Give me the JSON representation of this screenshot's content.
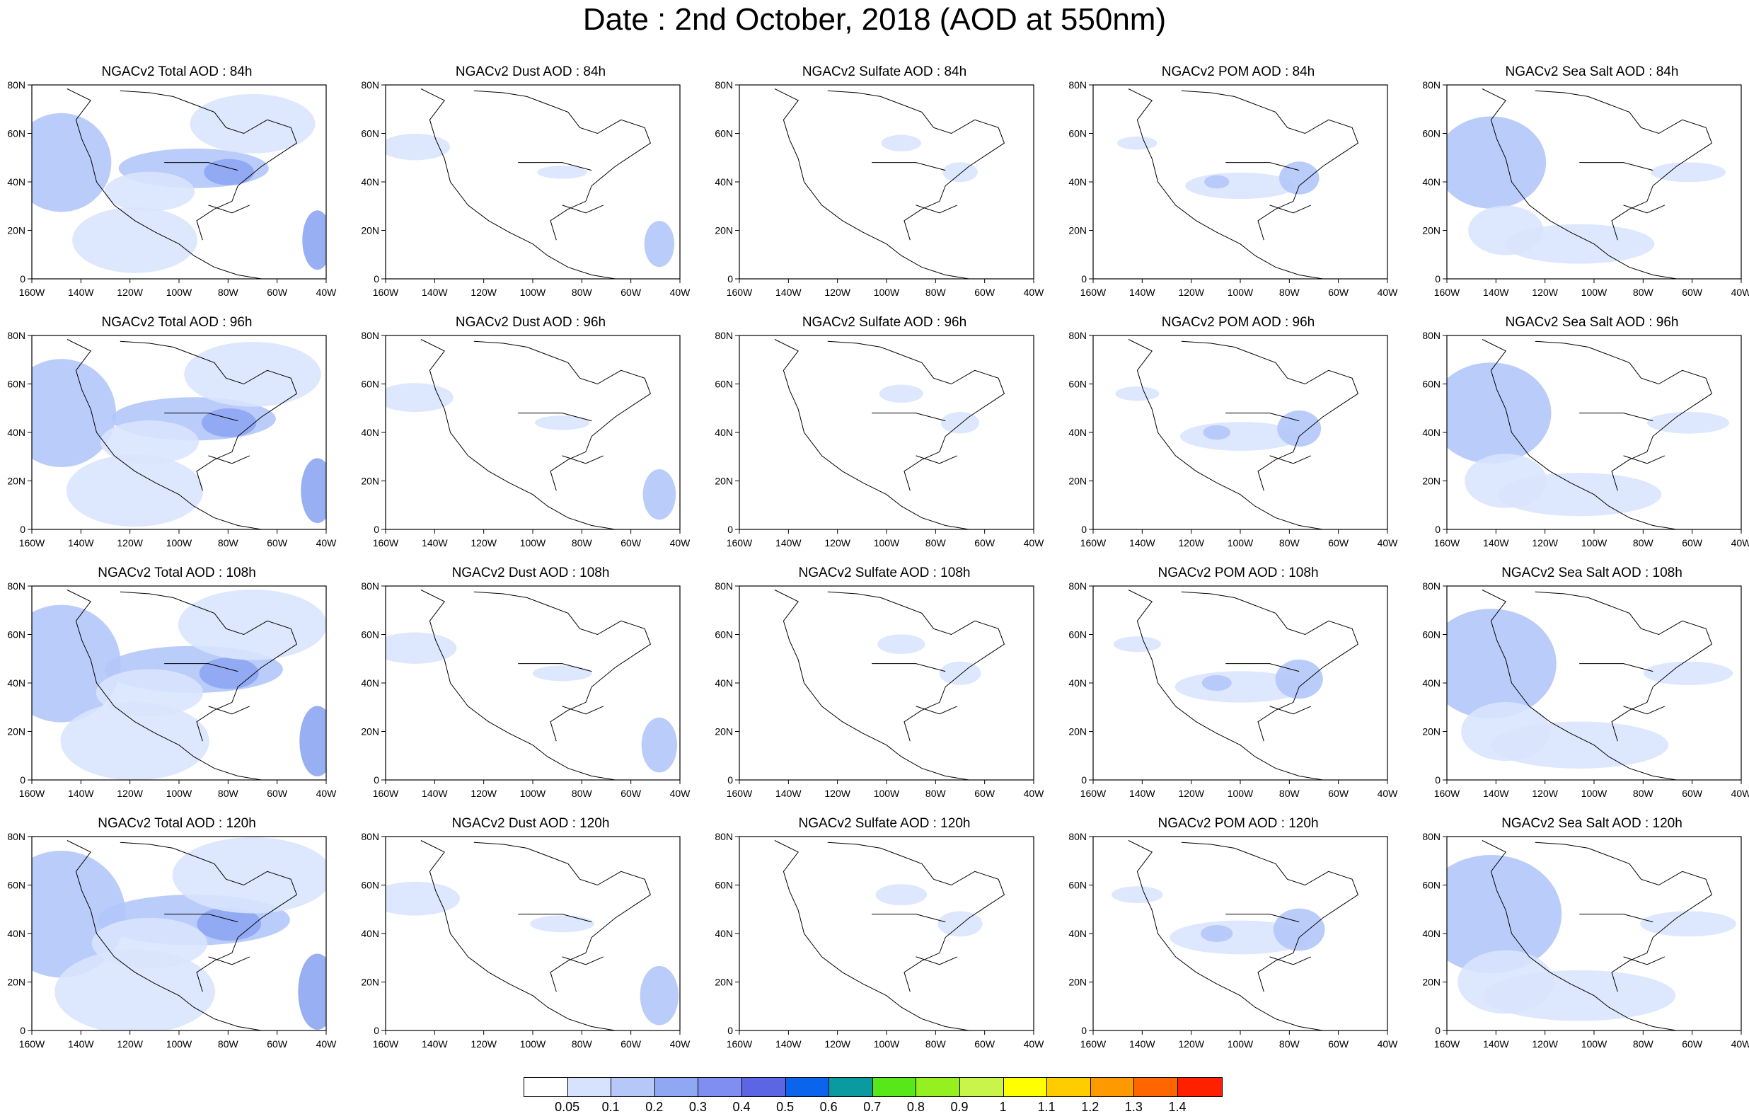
{
  "title": "Date : 2nd October, 2018 (AOD at 550nm)",
  "map_axes": {
    "lon_ticks": [
      "160W",
      "140W",
      "120W",
      "100W",
      "80W",
      "60W",
      "40W"
    ],
    "lat_ticks": [
      "80N",
      "60N",
      "40N",
      "20N",
      "0"
    ]
  },
  "columns": [
    {
      "species": "total",
      "label_prefix": "NGACv2 Total AOD : "
    },
    {
      "species": "dust",
      "label_prefix": "NGACv2 Dust AOD : "
    },
    {
      "species": "sulfate",
      "label_prefix": "NGACv2 Sulfate AOD : "
    },
    {
      "species": "pom",
      "label_prefix": "NGACv2 POM AOD : "
    },
    {
      "species": "seasalt",
      "label_prefix": "NGACv2 Sea Salt AOD : "
    }
  ],
  "rows": [
    {
      "forecast_hour": "84h"
    },
    {
      "forecast_hour": "96h"
    },
    {
      "forecast_hour": "108h"
    },
    {
      "forecast_hour": "120h"
    }
  ],
  "panels": [
    [
      "NGACv2 Total AOD : 84h",
      "NGACv2 Dust AOD : 84h",
      "NGACv2 Sulfate AOD : 84h",
      "NGACv2 POM AOD : 84h",
      "NGACv2 Sea Salt AOD : 84h"
    ],
    [
      "NGACv2 Total AOD : 96h",
      "NGACv2 Dust AOD : 96h",
      "NGACv2 Sulfate AOD : 96h",
      "NGACv2 POM AOD : 96h",
      "NGACv2 Sea Salt AOD : 96h"
    ],
    [
      "NGACv2 Total AOD : 108h",
      "NGACv2 Dust AOD : 108h",
      "NGACv2 Sulfate AOD : 108h",
      "NGACv2 POM AOD : 108h",
      "NGACv2 Sea Salt AOD : 108h"
    ],
    [
      "NGACv2 Total AOD : 120h",
      "NGACv2 Dust AOD : 120h",
      "NGACv2 Sulfate AOD : 120h",
      "NGACv2 POM AOD : 120h",
      "NGACv2 Sea Salt  AOD : 120h"
    ]
  ],
  "colorbar": {
    "labels": [
      "0.05",
      "0.1",
      "0.2",
      "0.3",
      "0.4",
      "0.5",
      "0.6",
      "0.7",
      "0.8",
      "0.9",
      "1",
      "1.1",
      "1.2",
      "1.3",
      "1.4"
    ],
    "colors": [
      "#ffffff",
      "#d7e3fc",
      "#b5c8f8",
      "#90a8f3",
      "#7f8ef0",
      "#5c66e4",
      "#0a64ec",
      "#0a9ba0",
      "#58e81a",
      "#96f020",
      "#c9f54a",
      "#ffff00",
      "#ffcc00",
      "#ff9900",
      "#ff6600",
      "#ff2000"
    ]
  },
  "aod_colors": {
    "low": "#d9e4fd",
    "mid": "#b3c6fa",
    "high": "#8ea6f2"
  }
}
